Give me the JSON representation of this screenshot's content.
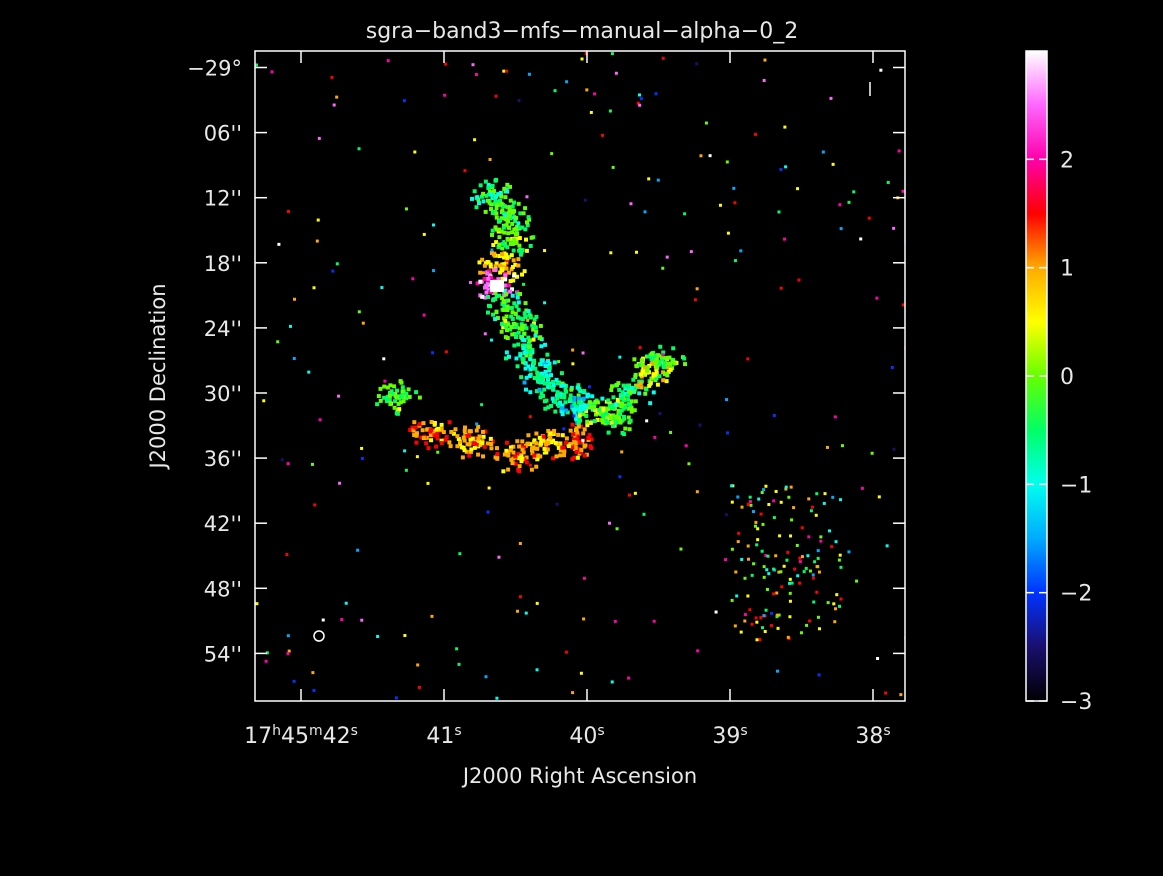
{
  "chart_data": {
    "type": "heatmap",
    "title": "sgra−band3−mfs−manual−alpha−0_2",
    "xlabel": "J2000 Right Ascension",
    "ylabel": "J2000 Declination",
    "x_ticks": [
      {
        "h": "17",
        "m": "45",
        "s": "42"
      },
      {
        "s": "41"
      },
      {
        "s": "40"
      },
      {
        "s": "39"
      },
      {
        "s": "38"
      }
    ],
    "y_ticks": [
      "−29°",
      "06''",
      "12''",
      "18''",
      "24''",
      "30''",
      "36''",
      "42''",
      "48''",
      "54''"
    ],
    "y_tick_arcsec": [
      0,
      6,
      12,
      18,
      24,
      30,
      36,
      42,
      48,
      54
    ],
    "x_tick_seconds": [
      42,
      41,
      40,
      39,
      38
    ],
    "colorbar": {
      "range": [
        -3,
        3
      ],
      "ticks": [
        2,
        1,
        0,
        -1,
        -2,
        -3
      ],
      "tick_labels": [
        "2",
        "1",
        "0",
        "−1",
        "−2",
        "−3"
      ],
      "colormap": [
        "#000000",
        "#1a0f6e",
        "#0033ff",
        "#00aaff",
        "#00ffee",
        "#00ff66",
        "#66ff00",
        "#ffff00",
        "#ffaa00",
        "#ff0000",
        "#ff00aa",
        "#ff66ff",
        "#ffffff"
      ]
    },
    "grid": false,
    "legend": "none",
    "colors": {
      "background": "#000000",
      "axes": "#ffffff",
      "text": "#e8e8e8"
    }
  }
}
